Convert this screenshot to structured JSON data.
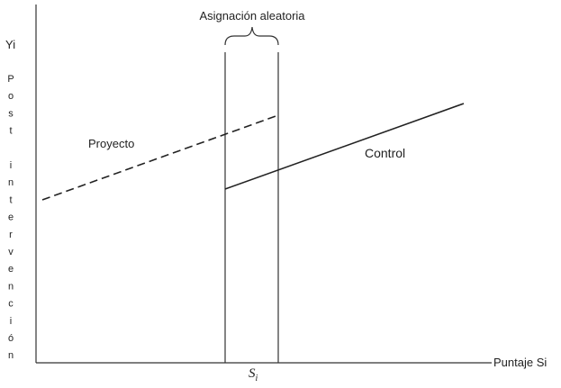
{
  "title": "Asignación aleatoria",
  "y_axis": {
    "symbol": "Yi",
    "label": "Post intervención"
  },
  "x_axis": {
    "label": "Puntaje Si",
    "tick": {
      "symbol": "S",
      "subscript": "i"
    }
  },
  "lines": [
    {
      "label": "Proyecto"
    },
    {
      "label": "Control"
    }
  ]
}
